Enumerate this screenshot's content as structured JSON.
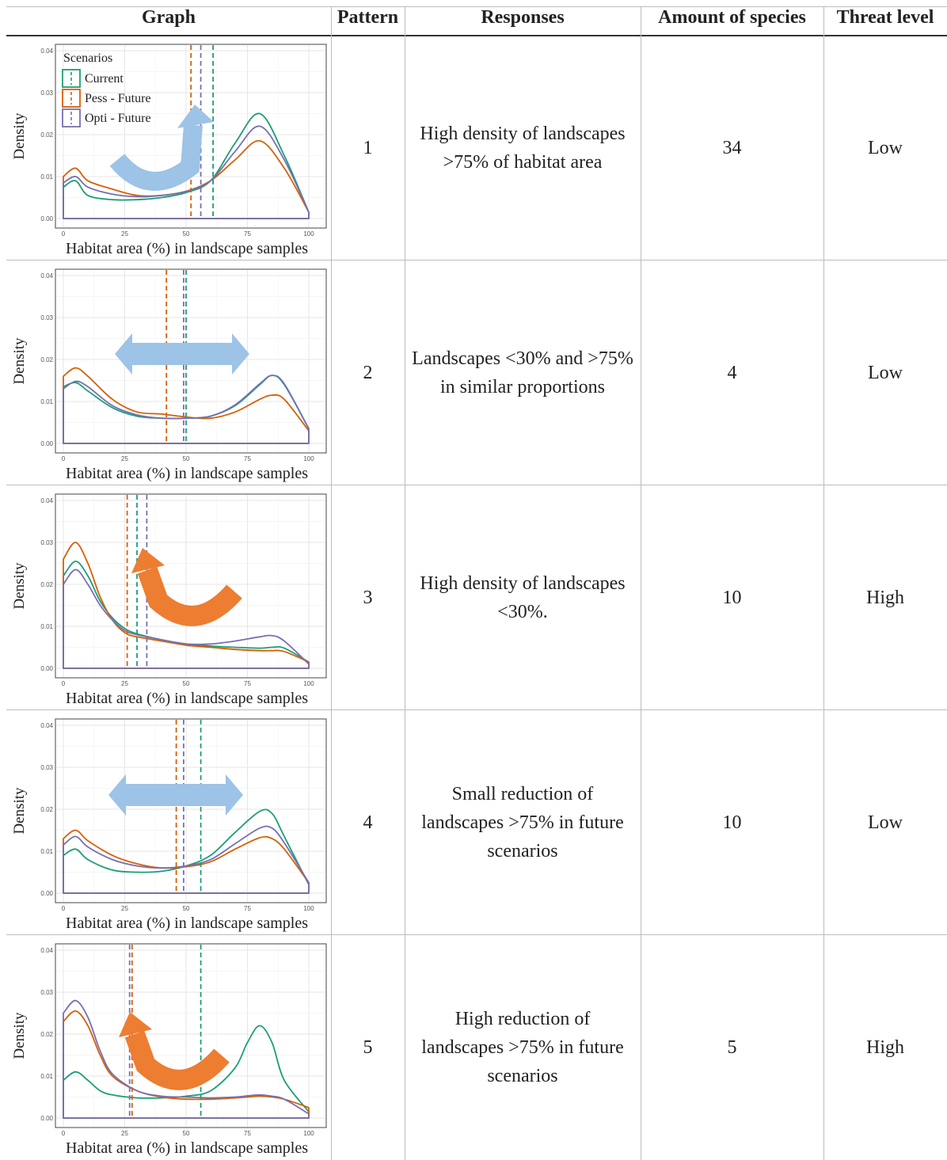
{
  "headers": {
    "graph": "Graph",
    "pattern": "Pattern",
    "responses": "Responses",
    "amount": "Amount of species",
    "threat": "Threat level"
  },
  "colors": {
    "current": "#1b9e77",
    "pess": "#d95f02",
    "opti": "#7570b3",
    "blue_arrow": "#9dc3e6",
    "orange_arrow": "#ed7d31"
  },
  "rows": [
    {
      "pattern": "1",
      "responses": "High density of landscapes >75% of habitat area",
      "amount": "34",
      "threat": "Low"
    },
    {
      "pattern": "2",
      "responses": "Landscapes <30% and >75% in similar proportions",
      "amount": "4",
      "threat": "Low"
    },
    {
      "pattern": "3",
      "responses": "High density of landscapes <30%.",
      "amount": "10",
      "threat": "High"
    },
    {
      "pattern": "4",
      "responses": "Small reduction of landscapes >75% in future scenarios",
      "amount": "10",
      "threat": "Low"
    },
    {
      "pattern": "5",
      "responses": "High reduction of landscapes >75% in future scenarios",
      "amount": "5",
      "threat": "High"
    }
  ],
  "chart_data": [
    {
      "type": "line",
      "arrow": "curved-up-right",
      "arrow_color": "blue",
      "legend_title": "Scenarios",
      "xlabel": "Habitat area (%) in landscape samples",
      "ylabel": "Density",
      "xlim": [
        0,
        100
      ],
      "ylim": [
        0,
        0.04
      ],
      "x_ticks": [
        "0",
        "25",
        "50",
        "75",
        "100"
      ],
      "y_ticks": [
        "0.00",
        "0.01",
        "0.02",
        "0.03",
        "0.04"
      ],
      "x": [
        0,
        5,
        10,
        20,
        30,
        40,
        50,
        60,
        70,
        80,
        90,
        100
      ],
      "series": [
        {
          "name": "Current",
          "values": [
            0.0075,
            0.009,
            0.0055,
            0.0045,
            0.0045,
            0.005,
            0.0062,
            0.009,
            0.018,
            0.025,
            0.015,
            0.0015
          ],
          "mean": 61
        },
        {
          "name": "Pess - Future",
          "values": [
            0.01,
            0.012,
            0.009,
            0.007,
            0.0055,
            0.0055,
            0.0065,
            0.009,
            0.014,
            0.0185,
            0.012,
            0.0015
          ],
          "mean": 52
        },
        {
          "name": "Opti - Future",
          "values": [
            0.0085,
            0.01,
            0.0075,
            0.0058,
            0.0052,
            0.0055,
            0.0065,
            0.009,
            0.016,
            0.022,
            0.014,
            0.0015
          ],
          "mean": 56
        }
      ]
    },
    {
      "type": "line",
      "arrow": "horizontal-double",
      "arrow_color": "blue",
      "xlabel": "Habitat area (%) in landscape samples",
      "ylabel": "Density",
      "xlim": [
        0,
        100
      ],
      "ylim": [
        0,
        0.04
      ],
      "x_ticks": [
        "0",
        "25",
        "50",
        "75",
        "100"
      ],
      "y_ticks": [
        "0.00",
        "0.01",
        "0.02",
        "0.03",
        "0.04"
      ],
      "x": [
        0,
        5,
        10,
        20,
        30,
        40,
        50,
        60,
        70,
        80,
        85,
        90,
        100
      ],
      "series": [
        {
          "name": "Current",
          "values": [
            0.0135,
            0.0145,
            0.0125,
            0.0085,
            0.0065,
            0.006,
            0.006,
            0.0065,
            0.009,
            0.014,
            0.0162,
            0.014,
            0.0035
          ],
          "mean": 50
        },
        {
          "name": "Pess - Future",
          "values": [
            0.016,
            0.018,
            0.016,
            0.0105,
            0.0075,
            0.007,
            0.0063,
            0.006,
            0.0075,
            0.0105,
            0.0115,
            0.0105,
            0.003
          ],
          "mean": 42
        },
        {
          "name": "Opti - Future",
          "values": [
            0.013,
            0.0148,
            0.0135,
            0.009,
            0.0068,
            0.006,
            0.006,
            0.0065,
            0.0092,
            0.0142,
            0.0162,
            0.0142,
            0.0035
          ],
          "mean": 49
        }
      ]
    },
    {
      "type": "line",
      "arrow": "curved-up-left",
      "arrow_color": "orange",
      "xlabel": "Habitat area (%) in landscape samples",
      "ylabel": "Density",
      "xlim": [
        0,
        100
      ],
      "ylim": [
        0,
        0.04
      ],
      "x_ticks": [
        "0",
        "25",
        "50",
        "75",
        "100"
      ],
      "y_ticks": [
        "0.00",
        "0.01",
        "0.02",
        "0.03",
        "0.04"
      ],
      "x": [
        0,
        5,
        10,
        15,
        20,
        25,
        30,
        40,
        50,
        60,
        70,
        80,
        85,
        90,
        100
      ],
      "series": [
        {
          "name": "Current",
          "values": [
            0.022,
            0.0255,
            0.022,
            0.016,
            0.012,
            0.0095,
            0.0082,
            0.0068,
            0.0058,
            0.0053,
            0.005,
            0.0048,
            0.005,
            0.0048,
            0.0015
          ],
          "mean": 30
        },
        {
          "name": "Pess - Future",
          "values": [
            0.026,
            0.03,
            0.025,
            0.017,
            0.0115,
            0.0085,
            0.0075,
            0.0065,
            0.0055,
            0.005,
            0.0045,
            0.0042,
            0.0042,
            0.004,
            0.0015
          ],
          "mean": 26
        },
        {
          "name": "Opti - Future",
          "values": [
            0.02,
            0.0235,
            0.02,
            0.015,
            0.0115,
            0.009,
            0.008,
            0.0068,
            0.0058,
            0.0058,
            0.0065,
            0.0075,
            0.0078,
            0.0065,
            0.001
          ],
          "mean": 34
        }
      ]
    },
    {
      "type": "line",
      "arrow": "horizontal-double",
      "arrow_color": "blue",
      "xlabel": "Habitat area (%) in landscape samples",
      "ylabel": "Density",
      "xlim": [
        0,
        100
      ],
      "ylim": [
        0,
        0.04
      ],
      "x_ticks": [
        "0",
        "25",
        "50",
        "75",
        "100"
      ],
      "y_ticks": [
        "0.00",
        "0.01",
        "0.02",
        "0.03",
        "0.04"
      ],
      "x": [
        0,
        5,
        10,
        20,
        30,
        40,
        50,
        60,
        70,
        80,
        85,
        90,
        100
      ],
      "series": [
        {
          "name": "Current",
          "values": [
            0.009,
            0.0105,
            0.008,
            0.0055,
            0.005,
            0.0052,
            0.0065,
            0.009,
            0.0145,
            0.0195,
            0.019,
            0.0135,
            0.002
          ],
          "mean": 56
        },
        {
          "name": "Pess - Future",
          "values": [
            0.013,
            0.015,
            0.0125,
            0.009,
            0.007,
            0.006,
            0.0063,
            0.0075,
            0.0105,
            0.0132,
            0.013,
            0.0105,
            0.0025
          ],
          "mean": 46
        },
        {
          "name": "Opti - Future",
          "values": [
            0.0115,
            0.0135,
            0.011,
            0.008,
            0.0065,
            0.006,
            0.0065,
            0.008,
            0.0118,
            0.0155,
            0.0155,
            0.012,
            0.0025
          ],
          "mean": 49
        }
      ]
    },
    {
      "type": "line",
      "arrow": "curved-up-left",
      "arrow_color": "orange",
      "xlabel": "Habitat area (%) in landscape samples",
      "ylabel": "Density",
      "xlim": [
        0,
        100
      ],
      "ylim": [
        0,
        0.04
      ],
      "x_ticks": [
        "0",
        "25",
        "50",
        "75",
        "100"
      ],
      "y_ticks": [
        "0.00",
        "0.01",
        "0.02",
        "0.03",
        "0.04"
      ],
      "x": [
        0,
        5,
        10,
        15,
        20,
        30,
        40,
        50,
        60,
        70,
        75,
        80,
        85,
        90,
        100
      ],
      "series": [
        {
          "name": "Current",
          "values": [
            0.009,
            0.011,
            0.009,
            0.0065,
            0.0055,
            0.0048,
            0.0048,
            0.0052,
            0.0065,
            0.012,
            0.018,
            0.022,
            0.018,
            0.009,
            0.0015
          ],
          "mean": 56
        },
        {
          "name": "Pess - Future",
          "values": [
            0.023,
            0.0255,
            0.022,
            0.015,
            0.01,
            0.0065,
            0.005,
            0.0045,
            0.0045,
            0.0048,
            0.005,
            0.0052,
            0.005,
            0.0045,
            0.0025
          ],
          "mean": 28
        },
        {
          "name": "Opti - Future",
          "values": [
            0.025,
            0.028,
            0.024,
            0.016,
            0.0105,
            0.0065,
            0.0052,
            0.005,
            0.0048,
            0.005,
            0.0053,
            0.0055,
            0.0052,
            0.0045,
            0.001
          ],
          "mean": 27
        }
      ]
    }
  ]
}
